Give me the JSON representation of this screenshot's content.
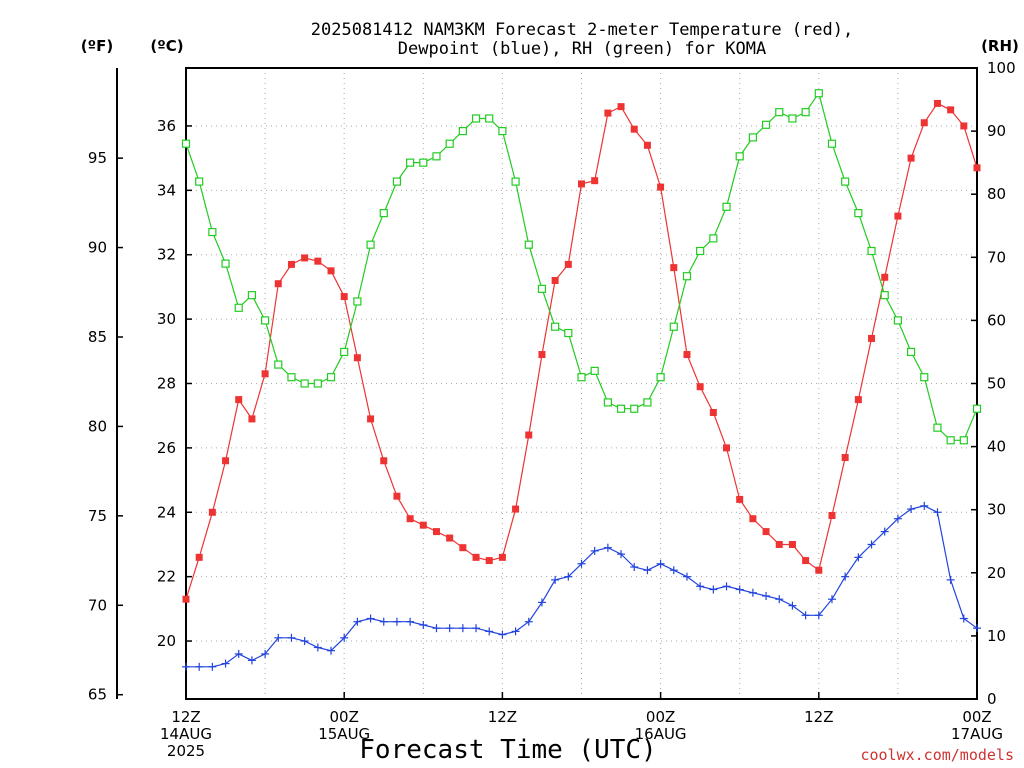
{
  "chart_data": {
    "type": "line",
    "title_line1": "2025081412 NAM3KM Forecast 2-meter Temperature (red),",
    "title_line2": "Dewpoint (blue), RH (green) for KOMA",
    "xlabel": "Forecast Time (UTC)",
    "credit": "coolwx.com/models",
    "left_outer_unit": "(ºF)",
    "left_inner_unit": "(ºC)",
    "right_unit": "(RH)",
    "fahrenheit_ticks": [
      "65",
      "70",
      "75",
      "80",
      "85",
      "90",
      "95"
    ],
    "celsius_ticks": [
      "20",
      "22",
      "24",
      "26",
      "28",
      "30",
      "32",
      "34",
      "36"
    ],
    "rh_ticks": [
      "0",
      "10",
      "20",
      "30",
      "40",
      "50",
      "60",
      "70",
      "80",
      "90",
      "100"
    ],
    "x_ticks": [
      {
        "hour": 0,
        "lines": [
          "12Z",
          "14AUG",
          "2025"
        ]
      },
      {
        "hour": 12,
        "lines": [
          "00Z",
          "15AUG"
        ]
      },
      {
        "hour": 24,
        "lines": [
          "12Z"
        ]
      },
      {
        "hour": 36,
        "lines": [
          "00Z",
          "16AUG"
        ]
      },
      {
        "hour": 48,
        "lines": [
          "12Z"
        ]
      },
      {
        "hour": 60,
        "lines": [
          "00Z",
          "17AUG"
        ]
      }
    ],
    "x_range_hours": [
      0,
      60
    ],
    "celsius_range": [
      18.2,
      37.8
    ],
    "fahrenheit_range": [
      64.76,
      100.04
    ],
    "rh_range": [
      0,
      100
    ],
    "grid": true,
    "series": [
      {
        "name": "Temperature",
        "color": "#ee3333",
        "marker": "filled-square",
        "values": [
          21.3,
          22.6,
          24.0,
          25.6,
          27.5,
          26.9,
          28.3,
          31.1,
          31.7,
          31.9,
          31.8,
          31.5,
          30.7,
          28.8,
          26.9,
          25.6,
          24.5,
          23.8,
          23.6,
          23.4,
          23.2,
          22.9,
          22.6,
          22.5,
          22.6,
          24.1,
          26.4,
          28.9,
          31.2,
          31.7,
          34.2,
          34.3,
          36.4,
          36.6,
          35.9,
          35.4,
          34.1,
          31.6,
          28.9,
          27.9,
          27.1,
          26.0,
          24.4,
          23.8,
          23.4,
          23.0,
          23.0,
          22.5,
          22.2,
          23.9,
          25.7,
          27.5,
          29.4,
          31.3,
          33.2,
          35.0,
          36.1,
          36.7,
          36.5,
          36.0,
          34.7
        ]
      },
      {
        "name": "Dewpoint",
        "color": "#2244dd",
        "marker": "plus",
        "values": [
          19.2,
          19.2,
          19.2,
          19.3,
          19.6,
          19.4,
          19.6,
          20.1,
          20.1,
          20.0,
          19.8,
          19.7,
          20.1,
          20.6,
          20.7,
          20.6,
          20.6,
          20.6,
          20.5,
          20.4,
          20.4,
          20.4,
          20.4,
          20.3,
          20.2,
          20.3,
          20.6,
          21.2,
          21.9,
          22.0,
          22.4,
          22.8,
          22.9,
          22.7,
          22.3,
          22.2,
          22.4,
          22.2,
          22.0,
          21.7,
          21.6,
          21.7,
          21.6,
          21.5,
          21.4,
          21.3,
          21.1,
          20.8,
          20.8,
          21.3,
          22.0,
          22.6,
          23.0,
          23.4,
          23.8,
          24.1,
          24.2,
          24.0,
          21.9,
          20.7,
          20.4
        ]
      },
      {
        "name": "RH",
        "color": "#22cc22",
        "marker": "open-square",
        "values": [
          88,
          82,
          74,
          69,
          62,
          64,
          60,
          53,
          51,
          50,
          50,
          51,
          55,
          63,
          72,
          77,
          82,
          85,
          85,
          86,
          88,
          90,
          92,
          92,
          90,
          82,
          72,
          65,
          59,
          58,
          51,
          52,
          47,
          46,
          46,
          47,
          51,
          59,
          67,
          71,
          73,
          78,
          86,
          89,
          91,
          93,
          92,
          93,
          96,
          88,
          82,
          77,
          71,
          64,
          60,
          55,
          51,
          43,
          41,
          41,
          46
        ]
      }
    ]
  }
}
